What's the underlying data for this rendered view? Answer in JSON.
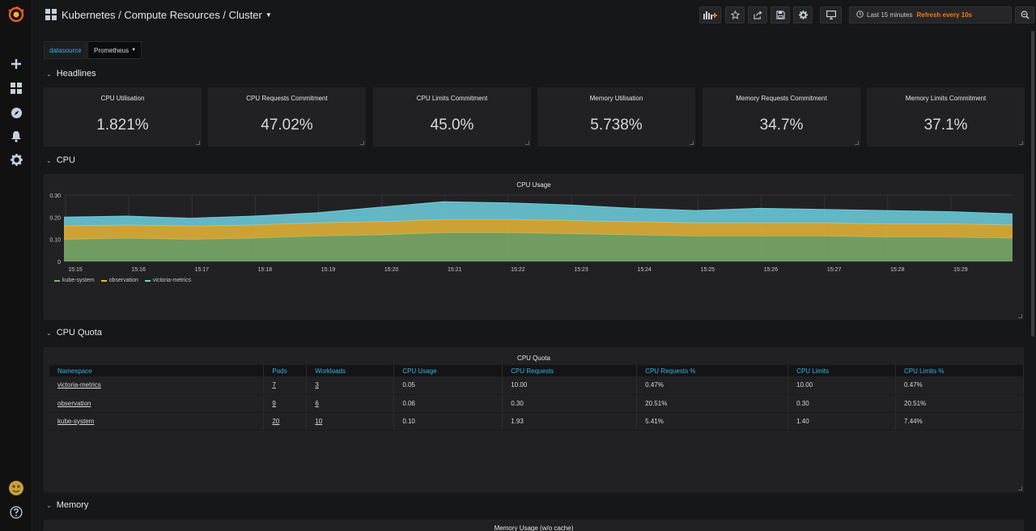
{
  "header": {
    "title": "Kubernetes / Compute Resources / Cluster",
    "time_range": "Last 15 minutes",
    "refresh": "Refresh every 10s"
  },
  "sidebar": {
    "icons": [
      "grafana-logo-icon",
      "plus-icon",
      "dashboards-icon",
      "explore-icon",
      "bell-icon",
      "gear-icon",
      "avatar",
      "help-icon"
    ]
  },
  "variables": {
    "datasource_label": "datasource",
    "datasource_value": "Prometheus"
  },
  "rows": {
    "headlines": "Headlines",
    "cpu": "CPU",
    "cpu_quota": "CPU Quota",
    "memory": "Memory"
  },
  "stats": [
    {
      "title": "CPU Utilisation",
      "value": "1.821%"
    },
    {
      "title": "CPU Requests Commitment",
      "value": "47.02%"
    },
    {
      "title": "CPU Limits Commitment",
      "value": "45.0%"
    },
    {
      "title": "Memory Utilisation",
      "value": "5.738%"
    },
    {
      "title": "Memory Requests Commitment",
      "value": "34.7%"
    },
    {
      "title": "Memory Limits Commitment",
      "value": "37.1%"
    }
  ],
  "cpu_usage": {
    "title": "CPU Usage",
    "y_ticks": [
      "0.30",
      "0.20",
      "0.10",
      "0"
    ],
    "x_ticks": [
      "15:15",
      "15:16",
      "15:17",
      "15:18",
      "15:19",
      "15:20",
      "15:21",
      "15:22",
      "15:23",
      "15:24",
      "15:25",
      "15:26",
      "15:27",
      "15:28",
      "15:29"
    ]
  },
  "chart_data": {
    "type": "area",
    "stacked": true,
    "title": "CPU Usage",
    "x": [
      "15:15",
      "15:16",
      "15:17",
      "15:18",
      "15:19",
      "15:20",
      "15:21",
      "15:22",
      "15:23",
      "15:24",
      "15:25",
      "15:26",
      "15:27",
      "15:28",
      "15:29",
      "15:30"
    ],
    "series": [
      {
        "name": "kube-system",
        "color": "#7eb26d",
        "values": [
          0.1,
          0.105,
          0.1,
          0.105,
          0.115,
          0.12,
          0.13,
          0.13,
          0.125,
          0.12,
          0.115,
          0.115,
          0.115,
          0.11,
          0.11,
          0.105
        ]
      },
      {
        "name": "observation",
        "color": "#eab839",
        "values": [
          0.06,
          0.06,
          0.06,
          0.06,
          0.06,
          0.06,
          0.06,
          0.06,
          0.06,
          0.06,
          0.06,
          0.06,
          0.06,
          0.06,
          0.06,
          0.06
        ]
      },
      {
        "name": "victoria-metrics",
        "color": "#6ed0e0",
        "values": [
          0.04,
          0.04,
          0.035,
          0.04,
          0.045,
          0.065,
          0.08,
          0.075,
          0.07,
          0.06,
          0.055,
          0.065,
          0.06,
          0.06,
          0.055,
          0.05
        ]
      }
    ],
    "ylim": [
      0,
      0.3
    ],
    "y_ticks": [
      "0.30",
      "0.20",
      "0.10",
      "0"
    ],
    "legend": "bottom-left",
    "grid": true
  },
  "cpu_quota": {
    "title": "CPU Quota",
    "columns": [
      "Namespace",
      "Pods",
      "Workloads",
      "CPU Usage",
      "CPU Requests",
      "CPU Requests %",
      "CPU Limits",
      "CPU Limits %"
    ],
    "rows": [
      [
        "victoria-metrics",
        "7",
        "3",
        "0.05",
        "10.00",
        "0.47%",
        "10.00",
        "0.47%"
      ],
      [
        "observation",
        "9",
        "6",
        "0.06",
        "0.30",
        "20.51%",
        "0.30",
        "20.51%"
      ],
      [
        "kube-system",
        "20",
        "10",
        "0.10",
        "1.93",
        "5.41%",
        "1.40",
        "7.44%"
      ]
    ]
  },
  "memory_panel": {
    "title": "Memory Usage (w/o cache)"
  }
}
